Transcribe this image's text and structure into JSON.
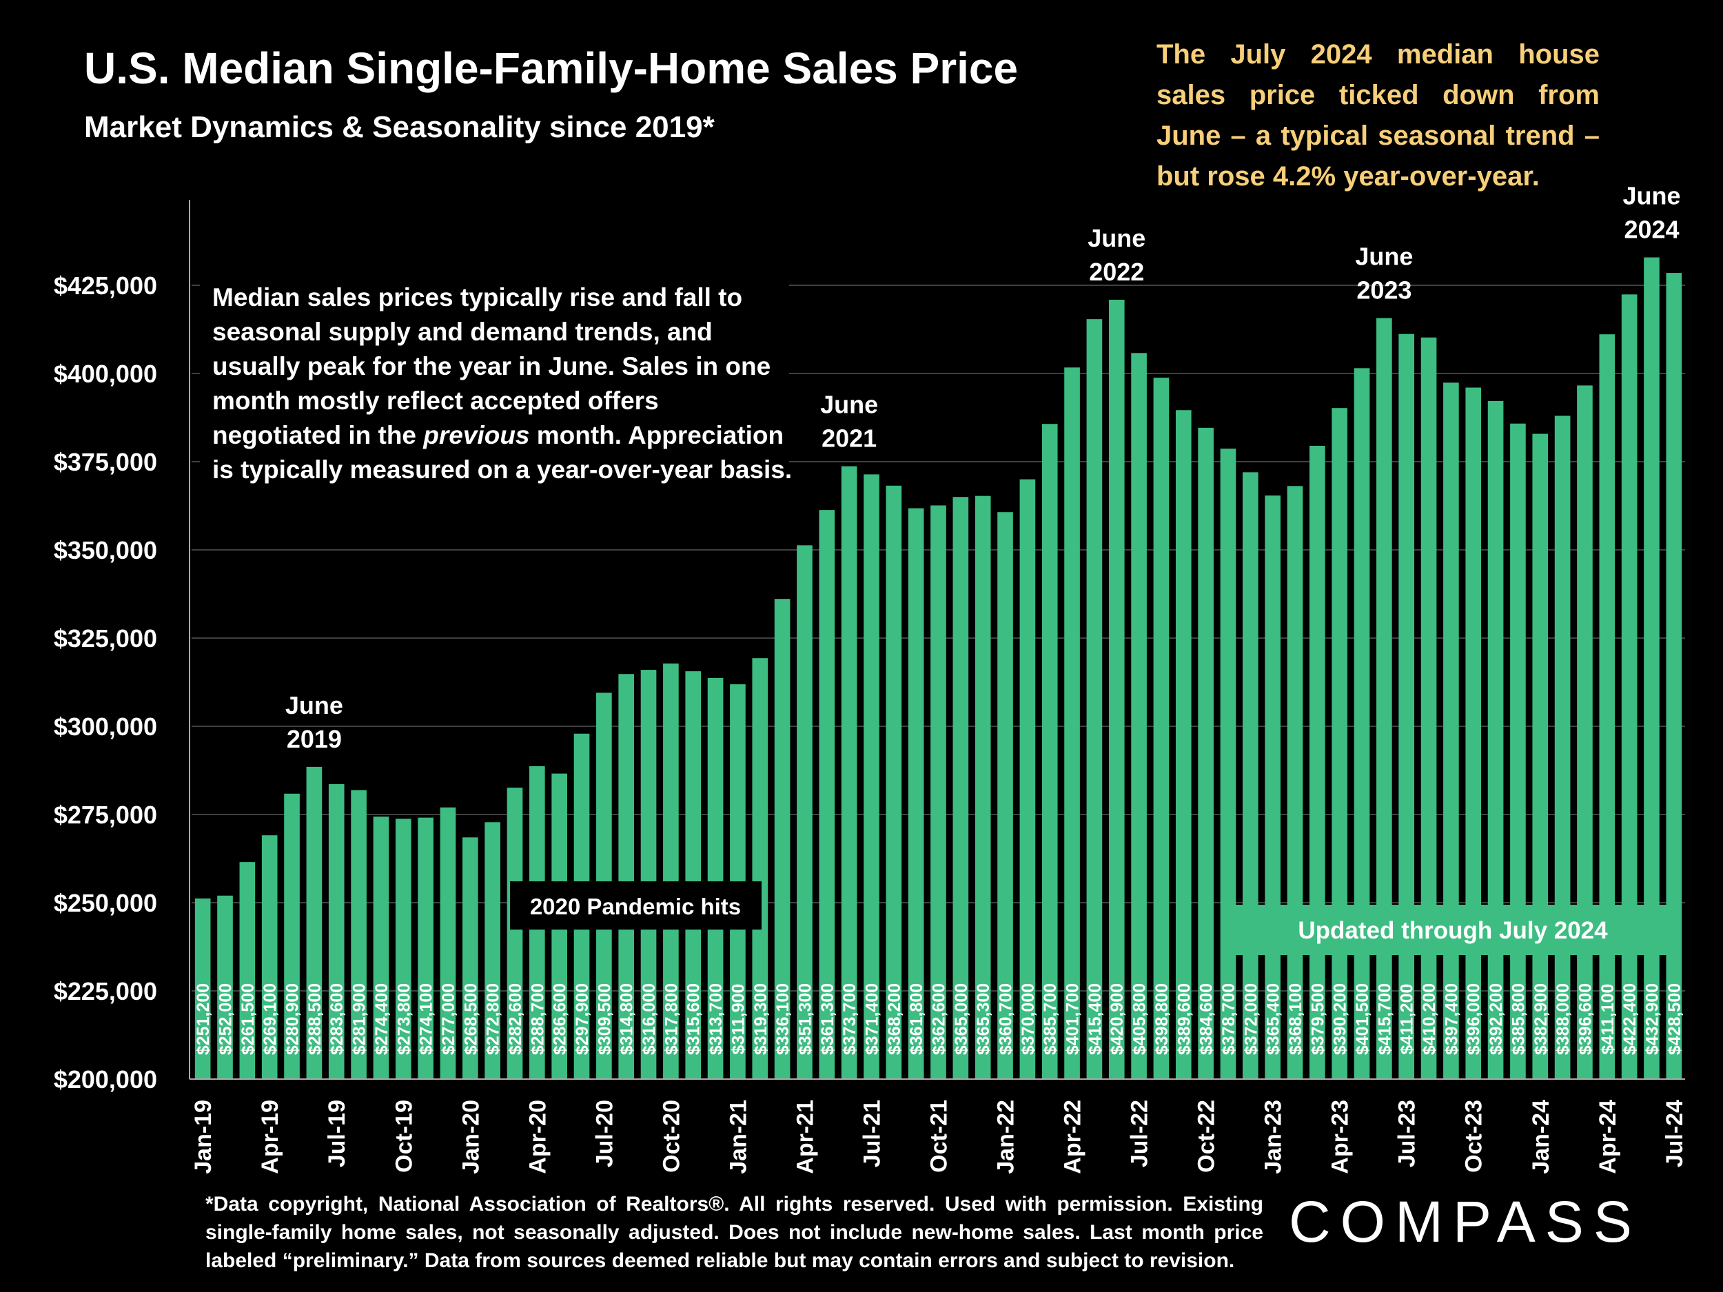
{
  "title": "U.S. Median Single-Family-Home Sales Price",
  "subtitle": "Market Dynamics & Seasonality since 2019*",
  "callout": "The July 2024 median house sales price ticked down from June – a typical seasonal trend – but rose 4.2% year-over-year.",
  "note_parts": [
    "Median sales prices typically rise and fall to seasonal supply and demand trends, and usually peak for the year in June. Sales in one month mostly reflect accepted offers negotiated in the ",
    "previous",
    " month. Appreciation is typically measured on a year-over-year basis."
  ],
  "pandemic_label": "2020 Pandemic hits",
  "updated_label": "Updated through July 2024",
  "footnote": "*Data copyright, National Association of Realtors®. All rights reserved. Used with permission. Existing single-family home sales, not seasonally adjusted. Does not include new-home sales. Last month price labeled “preliminary.” Data from sources deemed reliable but may contain errors and subject to revision.",
  "logo": "COMPASS",
  "colors": {
    "bar": "#3dbd82",
    "callout": "#f7cf7a",
    "background": "#000000",
    "text": "#ffffff"
  },
  "chart_data": {
    "type": "bar",
    "ylim": [
      200000,
      440000
    ],
    "yticks": [
      {
        "value": 200000,
        "label": "$200,000"
      },
      {
        "value": 225000,
        "label": "$225,000"
      },
      {
        "value": 250000,
        "label": "$250,000"
      },
      {
        "value": 275000,
        "label": "$275,000"
      },
      {
        "value": 300000,
        "label": "$300,000"
      },
      {
        "value": 325000,
        "label": "$325,000"
      },
      {
        "value": 350000,
        "label": "$350,000"
      },
      {
        "value": 375000,
        "label": "$375,000"
      },
      {
        "value": 400000,
        "label": "$400,000"
      },
      {
        "value": 425000,
        "label": "$425,000"
      }
    ],
    "categories": [
      "Jan-19",
      "Feb-19",
      "Mar-19",
      "Apr-19",
      "May-19",
      "Jun-19",
      "Jul-19",
      "Aug-19",
      "Sep-19",
      "Oct-19",
      "Nov-19",
      "Dec-19",
      "Jan-20",
      "Feb-20",
      "Mar-20",
      "Apr-20",
      "May-20",
      "Jun-20",
      "Jul-20",
      "Aug-20",
      "Sep-20",
      "Oct-20",
      "Nov-20",
      "Dec-20",
      "Jan-21",
      "Feb-21",
      "Mar-21",
      "Apr-21",
      "May-21",
      "Jun-21",
      "Jul-21",
      "Aug-21",
      "Sep-21",
      "Oct-21",
      "Nov-21",
      "Dec-21",
      "Jan-22",
      "Feb-22",
      "Mar-22",
      "Apr-22",
      "May-22",
      "Jun-22",
      "Jul-22",
      "Aug-22",
      "Sep-22",
      "Oct-22",
      "Nov-22",
      "Dec-22",
      "Jan-23",
      "Feb-23",
      "Mar-23",
      "Apr-23",
      "May-23",
      "Jun-23",
      "Jul-23",
      "Aug-23",
      "Sep-23",
      "Oct-23",
      "Nov-23",
      "Dec-23",
      "Jan-24",
      "Feb-24",
      "Mar-24",
      "Apr-24",
      "May-24",
      "Jun-24",
      "Jul-24"
    ],
    "x_tick_labels": [
      "Jan-19",
      "Apr-19",
      "Jul-19",
      "Oct-19",
      "Jan-20",
      "Apr-20",
      "Jul-20",
      "Oct-20",
      "Jan-21",
      "Apr-21",
      "Jul-21",
      "Oct-21",
      "Jan-22",
      "Apr-22",
      "Jul-22",
      "Oct-22",
      "Jan-23",
      "Apr-23",
      "Jul-23",
      "Oct-23",
      "Jan-24",
      "Apr-24",
      "Jul-24"
    ],
    "values": [
      251200,
      252000,
      261500,
      269100,
      280900,
      288500,
      283600,
      281900,
      274400,
      273800,
      274100,
      277000,
      268500,
      272800,
      282600,
      288700,
      286600,
      297900,
      309500,
      314800,
      316000,
      317800,
      315600,
      313700,
      311900,
      319300,
      336100,
      351300,
      361300,
      373700,
      371400,
      368200,
      361800,
      362600,
      365000,
      365300,
      360700,
      370000,
      385700,
      401700,
      415400,
      420900,
      405800,
      398800,
      389600,
      384600,
      378700,
      372000,
      365400,
      368100,
      379500,
      390200,
      401500,
      415700,
      411200,
      410200,
      397400,
      396000,
      392200,
      385800,
      382900,
      388000,
      396600,
      411100,
      422400,
      432900,
      428500
    ],
    "value_labels": [
      "$251,200",
      "$252,000",
      "$261,500",
      "$269,100",
      "$280,900",
      "$288,500",
      "$283,600",
      "$281,900",
      "$274,400",
      "$273,800",
      "$274,100",
      "$277,000",
      "$268,500",
      "$272,800",
      "$282,600",
      "$288,700",
      "$286,600",
      "$297,900",
      "$309,500",
      "$314,800",
      "$316,000",
      "$317,800",
      "$315,600",
      "$313,700",
      "$311,900",
      "$319,300",
      "$336,100",
      "$351,300",
      "$361,300",
      "$373,700",
      "$371,400",
      "$368,200",
      "$361,800",
      "$362,600",
      "$365,000",
      "$365,300",
      "$360,700",
      "$370,000",
      "$385,700",
      "$401,700",
      "$415,400",
      "$420,900",
      "$405,800",
      "$398,800",
      "$389,600",
      "$384,600",
      "$378,700",
      "$372,000",
      "$365,400",
      "$368,100",
      "$379,500",
      "$390,200",
      "$401,500",
      "$415,700",
      "$411,200",
      "$410,200",
      "$397,400",
      "$396,000",
      "$392,200",
      "$385,800",
      "$382,900",
      "$388,000",
      "$396,600",
      "$411,100",
      "$422,400",
      "$432,900",
      "$428,500"
    ],
    "annotations": [
      {
        "index": 5,
        "lines": [
          "June",
          "2019"
        ]
      },
      {
        "index": 29,
        "lines": [
          "June",
          "2021"
        ]
      },
      {
        "index": 41,
        "lines": [
          "June",
          "2022"
        ]
      },
      {
        "index": 53,
        "lines": [
          "June",
          "2023"
        ]
      },
      {
        "index": 65,
        "lines": [
          "June",
          "2024"
        ]
      }
    ],
    "grid": true,
    "legend": "none"
  }
}
